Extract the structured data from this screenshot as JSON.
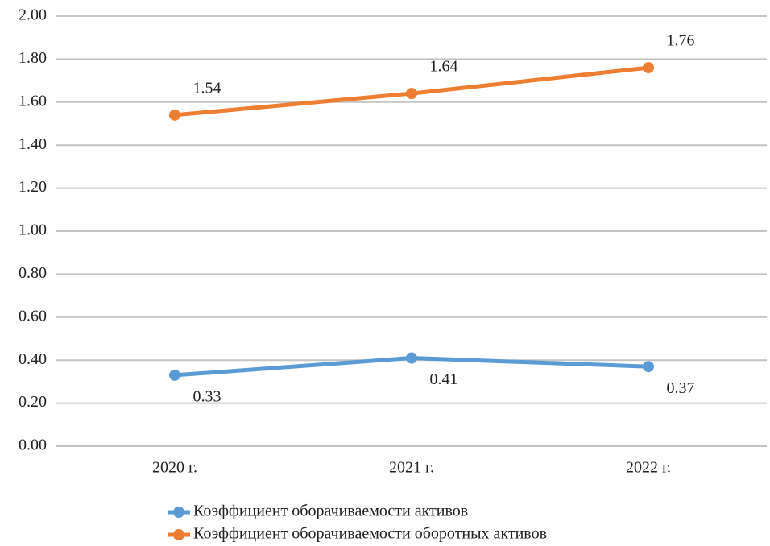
{
  "chart_data": {
    "type": "line",
    "categories": [
      "2020 г.",
      "2021 г.",
      "2022 г."
    ],
    "series": [
      {
        "name": "Коэффициент оборачиваемости активов",
        "color": "#5b9bd5",
        "values": [
          0.33,
          0.41,
          0.37
        ]
      },
      {
        "name": "Коэффициент оборачиваемости оборотных активов",
        "color": "#ed7d31",
        "values": [
          1.54,
          1.64,
          1.76
        ]
      }
    ],
    "ylim": [
      0,
      2
    ],
    "yticks": [
      {
        "value": 0,
        "label": "0.00"
      },
      {
        "value": 0.2,
        "label": "0.20"
      },
      {
        "value": 0.4,
        "label": "0.40"
      },
      {
        "value": 0.6,
        "label": "0.60"
      },
      {
        "value": 0.8,
        "label": "0.80"
      },
      {
        "value": 1,
        "label": "1.00"
      },
      {
        "value": 1.2,
        "label": "1.20"
      },
      {
        "value": 1.4,
        "label": "1.40"
      },
      {
        "value": 1.6,
        "label": "1.60"
      },
      {
        "value": 1.8,
        "label": "1.80"
      },
      {
        "value": 2,
        "label": "2.00"
      }
    ],
    "grid": true,
    "legend": "bottom"
  }
}
